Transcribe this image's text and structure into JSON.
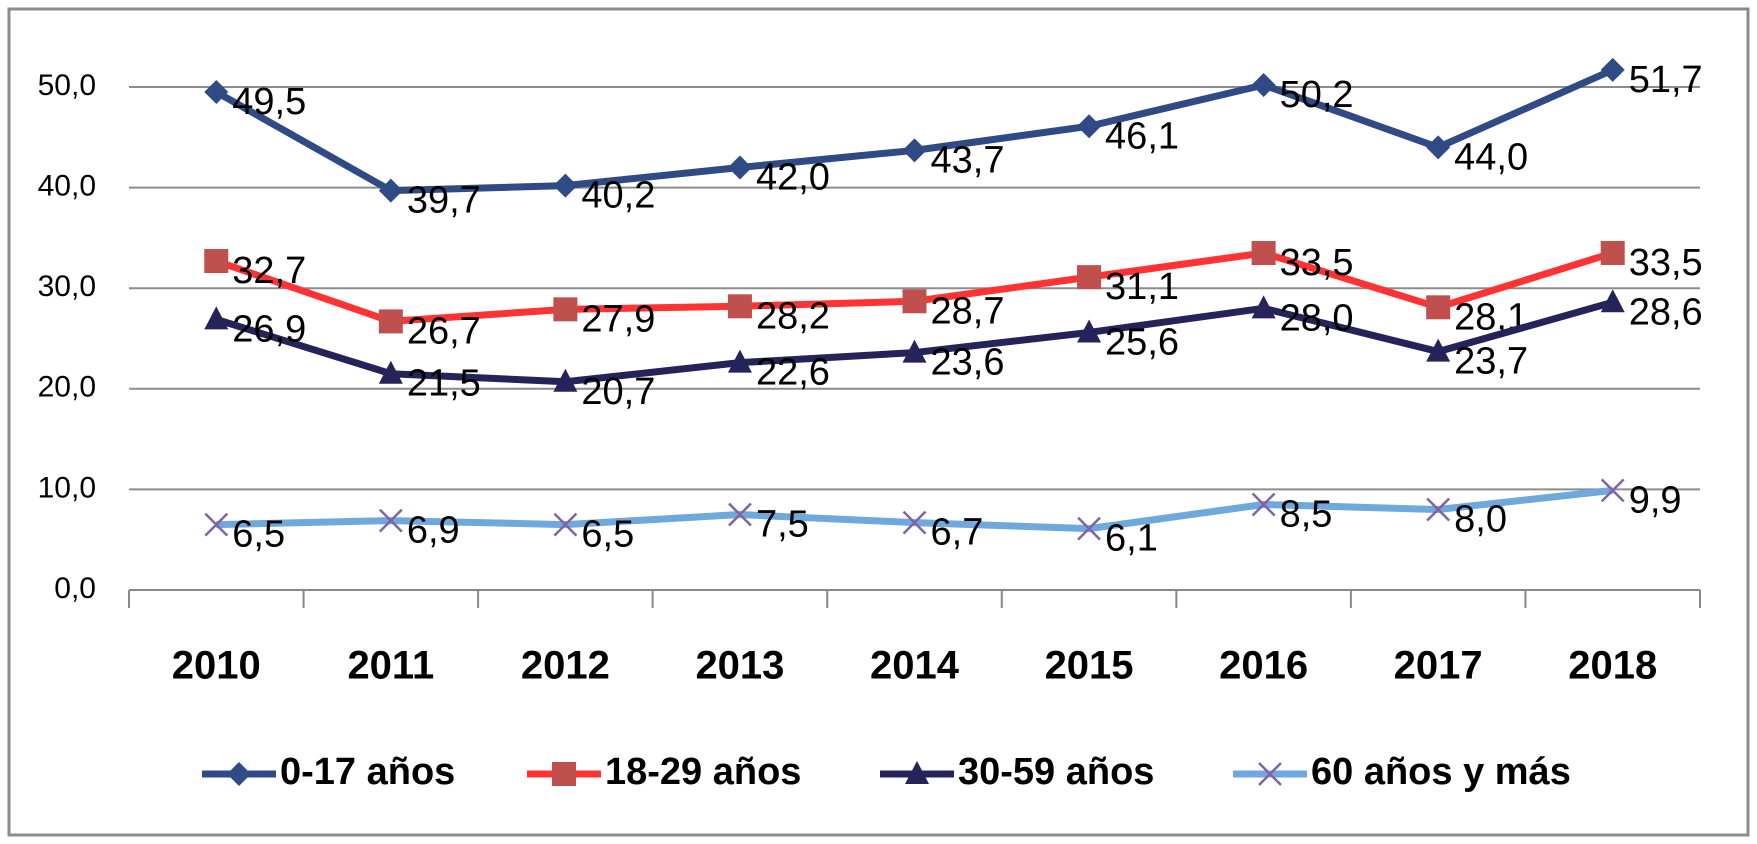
{
  "chart_data": {
    "type": "line",
    "categories": [
      "2010",
      "2011",
      "2012",
      "2013",
      "2014",
      "2015",
      "2016",
      "2017",
      "2018"
    ],
    "series": [
      {
        "name": "0-17 años",
        "color": "#2f4a85",
        "marker": "diamond",
        "marker_color": "#2f4a85",
        "values": [
          49.5,
          39.7,
          40.2,
          42.0,
          43.7,
          46.1,
          50.2,
          44.0,
          51.7
        ],
        "value_labels": [
          "49,5",
          "39,7",
          "40,2",
          "42,0",
          "43,7",
          "46,1",
          "50,2",
          "44,0",
          "51,7"
        ]
      },
      {
        "name": "18-29 años",
        "color": "#ff3333",
        "marker": "square",
        "marker_color": "#c0504d",
        "values": [
          32.7,
          26.7,
          27.9,
          28.2,
          28.7,
          31.1,
          33.5,
          28.1,
          33.5
        ],
        "value_labels": [
          "32,7",
          "26,7",
          "27,9",
          "28,2",
          "28,7",
          "31,1",
          "33,5",
          "28,1",
          "33,5"
        ]
      },
      {
        "name": "30-59 años",
        "color": "#24245a",
        "marker": "triangle",
        "marker_color": "#24245a",
        "values": [
          26.9,
          21.5,
          20.7,
          22.6,
          23.6,
          25.6,
          28.0,
          23.7,
          28.6
        ],
        "value_labels": [
          "26,9",
          "21,5",
          "20,7",
          "22,6",
          "23,6",
          "25,6",
          "28,0",
          "23,7",
          "28,6"
        ]
      },
      {
        "name": "60 años y más",
        "color": "#6fa8dc",
        "marker": "x",
        "marker_color": "#8064a2",
        "values": [
          6.5,
          6.9,
          6.5,
          7.5,
          6.7,
          6.1,
          8.5,
          8.0,
          9.9
        ],
        "value_labels": [
          "6,5",
          "6,9",
          "6,5",
          "7,5",
          "6,7",
          "6,1",
          "8,5",
          "8,0",
          "9,9"
        ]
      }
    ],
    "ylim": [
      0,
      50
    ],
    "yticks": [
      {
        "value": 0,
        "label": "0,0"
      },
      {
        "value": 10,
        "label": "10,0"
      },
      {
        "value": 20,
        "label": "20,0"
      },
      {
        "value": 30,
        "label": "30,0"
      },
      {
        "value": 40,
        "label": "40,0"
      },
      {
        "value": 50,
        "label": "50,0"
      }
    ],
    "grid": true,
    "legend": "bottom"
  }
}
